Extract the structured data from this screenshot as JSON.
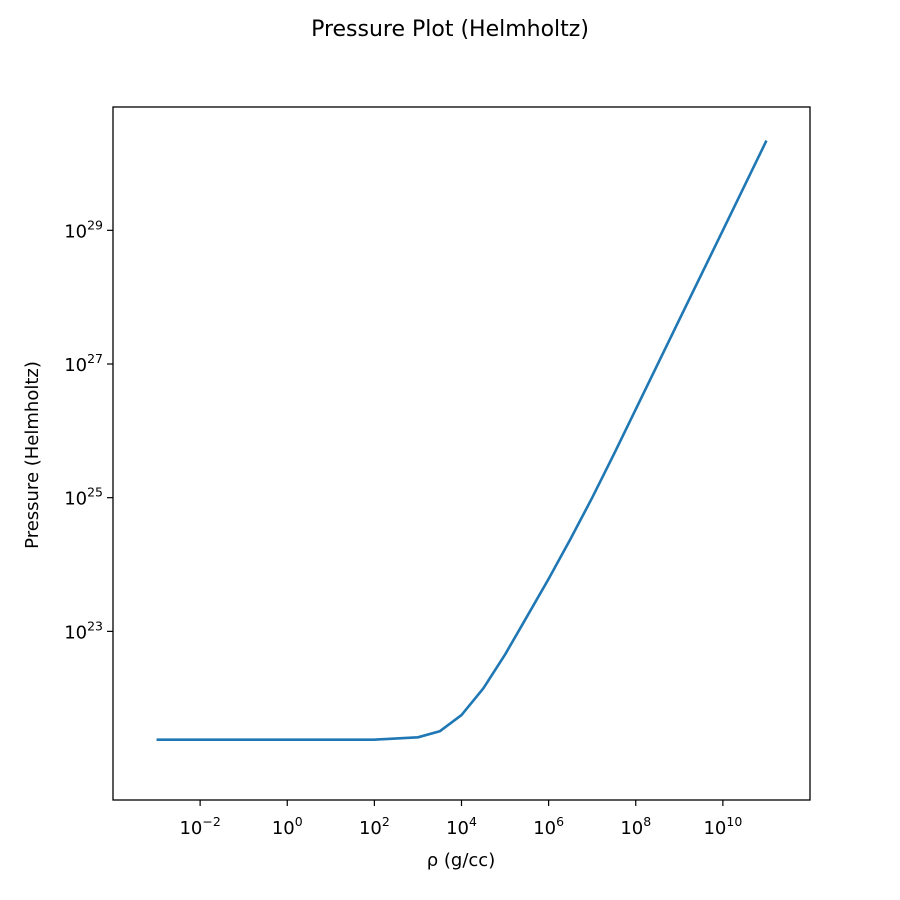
{
  "chart_data": {
    "type": "line",
    "title": "Pressure Plot (Helmholtz)",
    "xlabel": "ρ (g/cc)",
    "ylabel": "Pressure (Helmholtz)",
    "xscale": "log",
    "yscale": "log",
    "xlim": [
      0.0001,
      1000000000000.0
    ],
    "ylim": [
      3e+20,
      7e+30
    ],
    "x_ticks": [
      {
        "base": "10",
        "exp": "−2",
        "value": 0.01
      },
      {
        "base": "10",
        "exp": "0",
        "value": 1
      },
      {
        "base": "10",
        "exp": "2",
        "value": 100
      },
      {
        "base": "10",
        "exp": "4",
        "value": 10000
      },
      {
        "base": "10",
        "exp": "6",
        "value": 1000000
      },
      {
        "base": "10",
        "exp": "8",
        "value": 100000000
      },
      {
        "base": "10",
        "exp": "10",
        "value": 10000000000
      }
    ],
    "y_ticks": [
      {
        "base": "10",
        "exp": "23",
        "value": 1e+23
      },
      {
        "base": "10",
        "exp": "25",
        "value": 1e+25
      },
      {
        "base": "10",
        "exp": "27",
        "value": 1e+27
      },
      {
        "base": "10",
        "exp": "29",
        "value": 1e+29
      }
    ],
    "grid": false,
    "line_color": "#1f77b4",
    "series": [
      {
        "x": [
          0.001,
          0.01,
          0.1,
          1,
          10,
          100,
          1000,
          3162,
          10000,
          31623,
          100000,
          316228,
          1000000,
          3162278,
          10000000,
          31622777,
          100000000,
          1000000000,
          10000000000,
          100000000000
        ],
        "y": [
          2.4e+21,
          2.4e+21,
          2.4e+21,
          2.4e+21,
          2.4e+21,
          2.4e+21,
          2.6e+21,
          3.2e+21,
          5.6e+21,
          1.4e+22,
          4.5e+22,
          1.65e+23,
          6.1e+23,
          2.4e+24,
          1e+25,
          4.5e+25,
          2.1e+26,
          4.6e+27,
          1e+29,
          2.2e+30
        ]
      }
    ]
  }
}
